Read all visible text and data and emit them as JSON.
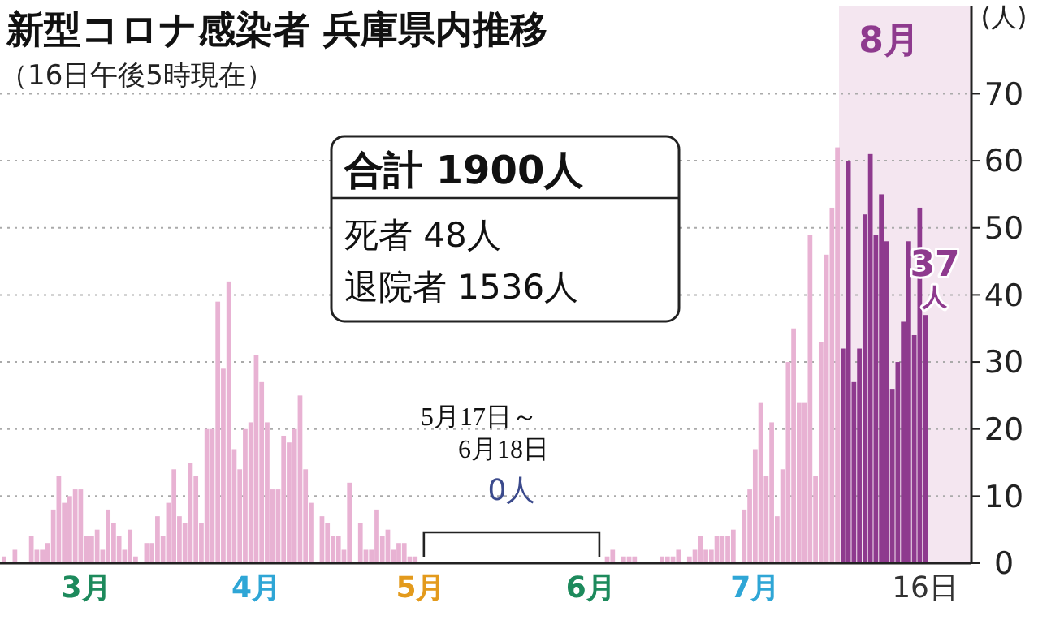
{
  "chart_data": {
    "type": "bar",
    "title": "新型コロナ感染者 兵庫県内推移",
    "subtitle": "（16日午後5時現在）",
    "ylabel": "(人)",
    "categories": [
      null,
      null,
      null,
      null,
      null,
      null,
      null,
      null,
      null,
      null,
      null,
      null,
      null,
      null,
      null,
      "3月",
      null,
      null,
      null,
      null,
      null,
      null,
      null,
      null,
      null,
      null,
      null,
      null,
      null,
      null,
      null,
      null,
      null,
      null,
      null,
      null,
      null,
      null,
      null,
      null,
      null,
      null,
      null,
      null,
      null,
      null,
      "4月",
      null,
      null,
      null,
      null,
      null,
      null,
      null,
      null,
      null,
      null,
      null,
      null,
      null,
      null,
      null,
      null,
      null,
      null,
      null,
      null,
      null,
      null,
      null,
      null,
      null,
      null,
      null,
      null,
      null,
      "5月",
      null,
      null,
      null,
      null,
      null,
      null,
      null,
      null,
      null,
      null,
      null,
      null,
      null,
      null,
      null,
      null,
      null,
      null,
      null,
      null,
      null,
      null,
      null,
      null,
      null,
      null,
      null,
      null,
      null,
      null,
      "6月",
      null,
      null,
      null,
      null,
      null,
      null,
      null,
      null,
      null,
      null,
      null,
      null,
      null,
      null,
      null,
      null,
      null,
      null,
      null,
      null,
      null,
      null,
      null,
      null,
      null,
      null,
      null,
      null,
      null,
      "7月",
      null,
      null,
      null,
      null,
      null,
      null,
      null,
      null,
      null,
      null,
      null,
      null,
      null,
      null,
      null,
      null,
      null,
      null,
      null,
      null,
      null,
      null,
      null,
      null,
      null,
      null,
      null,
      null,
      null,
      null,
      "16日"
    ],
    "series": [
      {
        "color": "#e8b2d3",
        "values": [
          1,
          0,
          2,
          0,
          0,
          4,
          2,
          2,
          3,
          8,
          13,
          9,
          10,
          11,
          11,
          4,
          4,
          5,
          2,
          8,
          6,
          4,
          2,
          5,
          1,
          0,
          3,
          3,
          7,
          4,
          9,
          14,
          7,
          6,
          15,
          13,
          6,
          20,
          20,
          39,
          29,
          42,
          17,
          14,
          20,
          21,
          31,
          27,
          21,
          11,
          11,
          19,
          18,
          20,
          25,
          14,
          9,
          0,
          7,
          6,
          4,
          4,
          2,
          12,
          0,
          6,
          2,
          2,
          8,
          4,
          5,
          2,
          3,
          3,
          1,
          1,
          0,
          0,
          0,
          0,
          0,
          0,
          0,
          0,
          0,
          0,
          0,
          0,
          0,
          0,
          0,
          0,
          0,
          0,
          0,
          0,
          0,
          0,
          0,
          0,
          0,
          0,
          0,
          0,
          0,
          0,
          0,
          0,
          0,
          0,
          1,
          2,
          0,
          1,
          1,
          1,
          0,
          0,
          0,
          0,
          1,
          1,
          1,
          2,
          0,
          1,
          2,
          4,
          2,
          2,
          4,
          4,
          4,
          5,
          0,
          8,
          11,
          17,
          24,
          13,
          21,
          7,
          14,
          30,
          35,
          24,
          24,
          49,
          13,
          33,
          46,
          53,
          62,
          null,
          null,
          null,
          null,
          null,
          null,
          null,
          null,
          null,
          null,
          null,
          null,
          null,
          null,
          null,
          null
        ]
      },
      {
        "color": "#8e3a8e",
        "values": [
          null,
          null,
          null,
          null,
          null,
          null,
          null,
          null,
          null,
          null,
          null,
          null,
          null,
          null,
          null,
          null,
          null,
          null,
          null,
          null,
          null,
          null,
          null,
          null,
          null,
          null,
          null,
          null,
          null,
          null,
          null,
          null,
          null,
          null,
          null,
          null,
          null,
          null,
          null,
          null,
          null,
          null,
          null,
          null,
          null,
          null,
          null,
          null,
          null,
          null,
          null,
          null,
          null,
          null,
          null,
          null,
          null,
          null,
          null,
          null,
          null,
          null,
          null,
          null,
          null,
          null,
          null,
          null,
          null,
          null,
          null,
          null,
          null,
          null,
          null,
          null,
          null,
          null,
          null,
          null,
          null,
          null,
          null,
          null,
          null,
          null,
          null,
          null,
          null,
          null,
          null,
          null,
          null,
          null,
          null,
          null,
          null,
          null,
          null,
          null,
          null,
          null,
          null,
          null,
          null,
          null,
          null,
          null,
          null,
          null,
          null,
          null,
          null,
          null,
          null,
          null,
          null,
          null,
          null,
          null,
          null,
          null,
          null,
          null,
          null,
          null,
          null,
          null,
          null,
          null,
          null,
          null,
          null,
          null,
          null,
          null,
          null,
          null,
          null,
          null,
          null,
          null,
          null,
          null,
          null,
          null,
          null,
          null,
          null,
          null,
          null,
          null,
          null,
          32,
          60,
          27,
          32,
          52,
          61,
          49,
          55,
          48,
          26,
          30,
          36,
          48,
          34,
          53,
          37
        ],
        "value_labels": [
          null,
          null,
          null,
          null,
          null,
          null,
          null,
          null,
          null,
          null,
          null,
          null,
          null,
          null,
          null,
          null,
          null,
          null,
          null,
          null,
          null,
          null,
          null,
          null,
          null,
          null,
          null,
          null,
          null,
          null,
          null,
          null,
          null,
          null,
          null,
          null,
          null,
          null,
          null,
          null,
          null,
          null,
          null,
          null,
          null,
          null,
          null,
          null,
          null,
          null,
          null,
          null,
          null,
          null,
          null,
          null,
          null,
          null,
          null,
          null,
          null,
          null,
          null,
          null,
          null,
          null,
          null,
          null,
          null,
          null,
          null,
          null,
          null,
          null,
          null,
          null,
          null,
          null,
          null,
          null,
          null,
          null,
          null,
          null,
          null,
          null,
          null,
          null,
          null,
          null,
          null,
          null,
          null,
          null,
          null,
          null,
          null,
          null,
          null,
          null,
          null,
          null,
          null,
          null,
          null,
          null,
          null,
          null,
          null,
          null,
          null,
          null,
          null,
          null,
          null,
          null,
          null,
          null,
          null,
          null,
          null,
          null,
          null,
          null,
          null,
          null,
          null,
          null,
          null,
          null,
          null,
          null,
          null,
          null,
          null,
          null,
          null,
          null,
          null,
          null,
          null,
          null,
          null,
          null,
          null,
          null,
          null,
          null,
          null,
          null,
          null,
          null,
          null,
          null,
          null,
          null,
          null,
          null,
          null,
          null,
          null,
          null,
          null,
          null,
          null,
          null,
          null,
          null,
          "37人"
        ]
      }
    ],
    "ylim": [
      0,
      83
    ],
    "yticks": [
      0,
      10,
      20,
      30,
      40,
      50,
      60,
      70
    ],
    "grid": "y",
    "annotations": [
      "合計 1900人",
      "死者 48人",
      "退院者 1536人",
      "5月17日～",
      "6月18日",
      "0人",
      "8月"
    ]
  }
}
